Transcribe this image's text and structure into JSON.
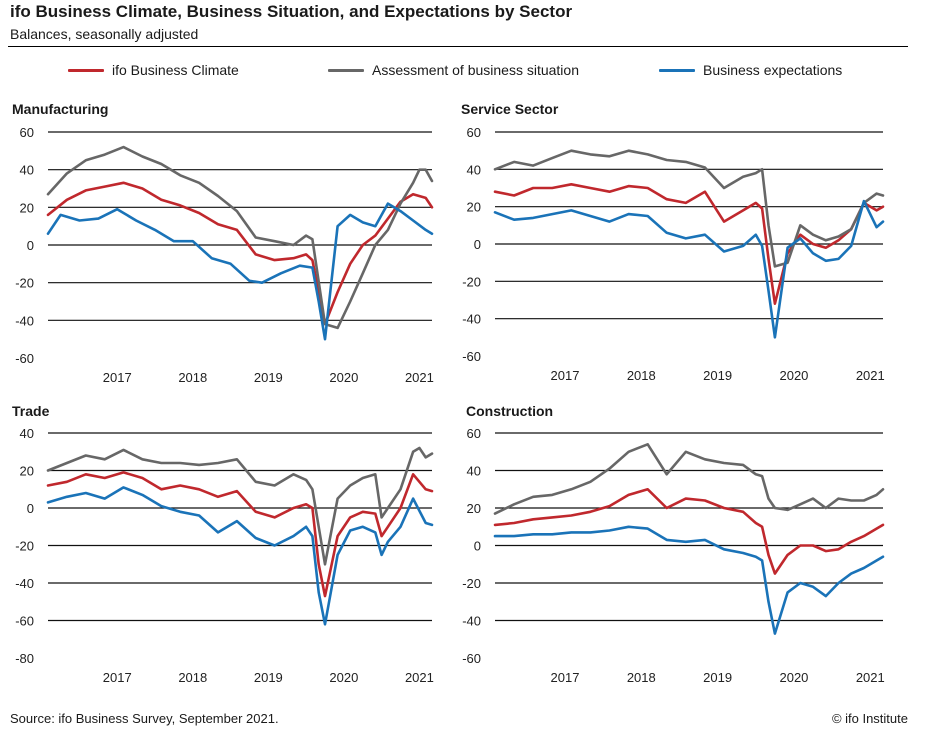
{
  "header": {
    "title": "ifo Business Climate, Business Situation, and Expectations by Sector",
    "subtitle": "Balances, seasonally adjusted"
  },
  "legend": [
    {
      "label": "ifo Business Climate",
      "color": "#c0282d"
    },
    {
      "label": "Assessment of business situation",
      "color": "#676767"
    },
    {
      "label": "Business expectations",
      "color": "#1a73b8"
    }
  ],
  "footer": {
    "source": "Source: ifo Business Survey, September 2021.",
    "copyright": "© ifo Institute"
  },
  "chart_data": [
    {
      "type": "line",
      "title": "Manufacturing",
      "ylim": [
        -60,
        60
      ],
      "yticks": [
        60,
        40,
        20,
        0,
        -20,
        -40,
        -60
      ],
      "x_labels": [
        "2017",
        "2018",
        "2019",
        "2020",
        "2021"
      ],
      "x_range": [
        "2016-08",
        "2021-09"
      ],
      "grid": true,
      "series": [
        {
          "name": "ifo Business Climate",
          "color": "#c0282d",
          "x": [
            "2016-08",
            "2016-11",
            "2017-02",
            "2017-05",
            "2017-08",
            "2017-11",
            "2018-02",
            "2018-05",
            "2018-08",
            "2018-11",
            "2019-02",
            "2019-05",
            "2019-08",
            "2019-11",
            "2020-01",
            "2020-02",
            "2020-04",
            "2020-06",
            "2020-08",
            "2020-10",
            "2020-12",
            "2021-02",
            "2021-04",
            "2021-06",
            "2021-08",
            "2021-09"
          ],
          "y": [
            16,
            24,
            29,
            31,
            33,
            30,
            24,
            21,
            17,
            11,
            8,
            -5,
            -8,
            -7,
            -5,
            -8,
            -42,
            -25,
            -10,
            0,
            5,
            14,
            23,
            27,
            25,
            20
          ]
        },
        {
          "name": "Assessment of business situation",
          "color": "#676767",
          "x": [
            "2016-08",
            "2016-11",
            "2017-02",
            "2017-05",
            "2017-08",
            "2017-11",
            "2018-02",
            "2018-05",
            "2018-08",
            "2018-11",
            "2019-02",
            "2019-05",
            "2019-08",
            "2019-11",
            "2020-01",
            "2020-02",
            "2020-04",
            "2020-06",
            "2020-08",
            "2020-10",
            "2020-12",
            "2021-02",
            "2021-04",
            "2021-06",
            "2021-07",
            "2021-08",
            "2021-09"
          ],
          "y": [
            27,
            38,
            45,
            48,
            52,
            47,
            43,
            37,
            33,
            26,
            18,
            4,
            2,
            0,
            5,
            3,
            -42,
            -44,
            -30,
            -15,
            0,
            8,
            22,
            33,
            40,
            40,
            34
          ]
        },
        {
          "name": "Business expectations",
          "color": "#1a73b8",
          "x": [
            "2016-08",
            "2016-10",
            "2017-01",
            "2017-04",
            "2017-07",
            "2017-10",
            "2018-01",
            "2018-04",
            "2018-07",
            "2018-10",
            "2019-01",
            "2019-04",
            "2019-06",
            "2019-09",
            "2019-12",
            "2020-02",
            "2020-03",
            "2020-04",
            "2020-06",
            "2020-08",
            "2020-10",
            "2020-12",
            "2021-02",
            "2021-04",
            "2021-06",
            "2021-08",
            "2021-09"
          ],
          "y": [
            6,
            16,
            13,
            14,
            19,
            13,
            8,
            2,
            2,
            -7,
            -10,
            -19,
            -20,
            -15,
            -11,
            -12,
            -30,
            -50,
            10,
            16,
            12,
            10,
            22,
            18,
            13,
            8,
            6
          ]
        }
      ]
    },
    {
      "type": "line",
      "title": "Service Sector",
      "ylim": [
        -60,
        60
      ],
      "yticks": [
        60,
        40,
        20,
        0,
        -20,
        -40,
        -60
      ],
      "x_labels": [
        "2017",
        "2018",
        "2019",
        "2020",
        "2021"
      ],
      "x_range": [
        "2016-08",
        "2021-09"
      ],
      "grid": true,
      "series": [
        {
          "name": "ifo Business Climate",
          "color": "#c0282d",
          "x": [
            "2016-08",
            "2016-11",
            "2017-02",
            "2017-05",
            "2017-08",
            "2017-11",
            "2018-02",
            "2018-05",
            "2018-08",
            "2018-11",
            "2019-02",
            "2019-05",
            "2019-08",
            "2019-11",
            "2020-01",
            "2020-02",
            "2020-03",
            "2020-04",
            "2020-06",
            "2020-08",
            "2020-10",
            "2020-12",
            "2021-02",
            "2021-04",
            "2021-06",
            "2021-08",
            "2021-09"
          ],
          "y": [
            28,
            26,
            30,
            30,
            32,
            30,
            28,
            31,
            30,
            24,
            22,
            28,
            12,
            18,
            22,
            19,
            -8,
            -32,
            -5,
            5,
            0,
            -2,
            2,
            8,
            22,
            18,
            20
          ]
        },
        {
          "name": "Assessment of business situation",
          "color": "#676767",
          "x": [
            "2016-08",
            "2016-11",
            "2017-02",
            "2017-05",
            "2017-08",
            "2017-11",
            "2018-02",
            "2018-05",
            "2018-08",
            "2018-11",
            "2019-02",
            "2019-05",
            "2019-08",
            "2019-11",
            "2020-01",
            "2020-02",
            "2020-03",
            "2020-04",
            "2020-06",
            "2020-08",
            "2020-10",
            "2020-12",
            "2021-02",
            "2021-04",
            "2021-06",
            "2021-08",
            "2021-09"
          ],
          "y": [
            40,
            44,
            42,
            46,
            50,
            48,
            47,
            50,
            48,
            45,
            44,
            41,
            30,
            36,
            38,
            40,
            10,
            -12,
            -10,
            10,
            5,
            2,
            4,
            8,
            22,
            27,
            26
          ]
        },
        {
          "name": "Business expectations",
          "color": "#1a73b8",
          "x": [
            "2016-08",
            "2016-11",
            "2017-02",
            "2017-05",
            "2017-08",
            "2017-11",
            "2018-02",
            "2018-05",
            "2018-08",
            "2018-11",
            "2019-02",
            "2019-05",
            "2019-08",
            "2019-11",
            "2020-01",
            "2020-02",
            "2020-03",
            "2020-04",
            "2020-06",
            "2020-08",
            "2020-10",
            "2020-12",
            "2021-02",
            "2021-04",
            "2021-06",
            "2021-08",
            "2021-09"
          ],
          "y": [
            17,
            13,
            14,
            16,
            18,
            15,
            12,
            16,
            15,
            6,
            3,
            5,
            -4,
            -1,
            5,
            -1,
            -25,
            -50,
            -2,
            3,
            -5,
            -9,
            -8,
            -1,
            23,
            9,
            12
          ]
        }
      ]
    },
    {
      "type": "line",
      "title": "Trade",
      "ylim": [
        -80,
        40
      ],
      "yticks": [
        40,
        20,
        0,
        -20,
        -40,
        -60,
        -80
      ],
      "x_labels": [
        "2017",
        "2018",
        "2019",
        "2020",
        "2021"
      ],
      "x_range": [
        "2016-08",
        "2021-09"
      ],
      "grid": true,
      "series": [
        {
          "name": "ifo Business Climate",
          "color": "#c0282d",
          "x": [
            "2016-08",
            "2016-11",
            "2017-02",
            "2017-05",
            "2017-08",
            "2017-11",
            "2018-02",
            "2018-05",
            "2018-08",
            "2018-11",
            "2019-02",
            "2019-05",
            "2019-08",
            "2019-11",
            "2020-01",
            "2020-02",
            "2020-03",
            "2020-04",
            "2020-06",
            "2020-08",
            "2020-10",
            "2020-12",
            "2021-01",
            "2021-02",
            "2021-04",
            "2021-06",
            "2021-08",
            "2021-09"
          ],
          "y": [
            12,
            14,
            18,
            16,
            19,
            16,
            10,
            12,
            10,
            6,
            9,
            -2,
            -5,
            0,
            2,
            0,
            -30,
            -47,
            -15,
            -5,
            -2,
            -3,
            -15,
            -10,
            0,
            18,
            10,
            9
          ]
        },
        {
          "name": "Assessment of business situation",
          "color": "#676767",
          "x": [
            "2016-08",
            "2016-11",
            "2017-02",
            "2017-05",
            "2017-08",
            "2017-11",
            "2018-02",
            "2018-05",
            "2018-08",
            "2018-11",
            "2019-02",
            "2019-05",
            "2019-08",
            "2019-11",
            "2020-01",
            "2020-02",
            "2020-03",
            "2020-04",
            "2020-06",
            "2020-08",
            "2020-10",
            "2020-12",
            "2021-01",
            "2021-02",
            "2021-04",
            "2021-06",
            "2021-07",
            "2021-08",
            "2021-09"
          ],
          "y": [
            20,
            24,
            28,
            26,
            31,
            26,
            24,
            24,
            23,
            24,
            26,
            14,
            12,
            18,
            15,
            10,
            -10,
            -30,
            5,
            12,
            16,
            18,
            -5,
            0,
            10,
            30,
            32,
            27,
            29
          ]
        },
        {
          "name": "Business expectations",
          "color": "#1a73b8",
          "x": [
            "2016-08",
            "2016-11",
            "2017-02",
            "2017-05",
            "2017-08",
            "2017-11",
            "2018-02",
            "2018-05",
            "2018-08",
            "2018-11",
            "2019-02",
            "2019-05",
            "2019-08",
            "2019-11",
            "2020-01",
            "2020-02",
            "2020-03",
            "2020-04",
            "2020-06",
            "2020-08",
            "2020-10",
            "2020-12",
            "2021-01",
            "2021-02",
            "2021-04",
            "2021-06",
            "2021-08",
            "2021-09"
          ],
          "y": [
            3,
            6,
            8,
            5,
            11,
            7,
            1,
            -2,
            -4,
            -13,
            -7,
            -16,
            -20,
            -15,
            -10,
            -15,
            -45,
            -62,
            -25,
            -12,
            -10,
            -13,
            -25,
            -18,
            -10,
            5,
            -8,
            -9
          ]
        }
      ]
    },
    {
      "type": "line",
      "title": "Construction",
      "ylim": [
        -60,
        60
      ],
      "yticks": [
        60,
        40,
        20,
        0,
        -20,
        -40,
        -60
      ],
      "x_labels": [
        "2017",
        "2018",
        "2019",
        "2020",
        "2021"
      ],
      "x_range": [
        "2016-08",
        "2021-09"
      ],
      "grid": true,
      "series": [
        {
          "name": "ifo Business Climate",
          "color": "#c0282d",
          "x": [
            "2016-08",
            "2016-11",
            "2017-02",
            "2017-05",
            "2017-08",
            "2017-11",
            "2018-02",
            "2018-05",
            "2018-08",
            "2018-11",
            "2019-02",
            "2019-05",
            "2019-08",
            "2019-11",
            "2020-01",
            "2020-02",
            "2020-03",
            "2020-04",
            "2020-06",
            "2020-08",
            "2020-10",
            "2020-12",
            "2021-02",
            "2021-04",
            "2021-06",
            "2021-08",
            "2021-09"
          ],
          "y": [
            11,
            12,
            14,
            15,
            16,
            18,
            21,
            27,
            30,
            20,
            25,
            24,
            20,
            18,
            12,
            10,
            -5,
            -15,
            -5,
            0,
            0,
            -3,
            -2,
            2,
            5,
            9,
            11
          ]
        },
        {
          "name": "Assessment of business situation",
          "color": "#676767",
          "x": [
            "2016-08",
            "2016-11",
            "2017-02",
            "2017-05",
            "2017-08",
            "2017-11",
            "2018-02",
            "2018-05",
            "2018-08",
            "2018-11",
            "2019-02",
            "2019-05",
            "2019-08",
            "2019-11",
            "2020-01",
            "2020-02",
            "2020-03",
            "2020-04",
            "2020-06",
            "2020-08",
            "2020-10",
            "2020-12",
            "2021-02",
            "2021-04",
            "2021-06",
            "2021-08",
            "2021-09"
          ],
          "y": [
            17,
            22,
            26,
            27,
            30,
            34,
            41,
            50,
            54,
            38,
            50,
            46,
            44,
            43,
            38,
            37,
            25,
            20,
            19,
            22,
            25,
            20,
            25,
            24,
            24,
            27,
            30
          ]
        },
        {
          "name": "Business expectations",
          "color": "#1a73b8",
          "x": [
            "2016-08",
            "2016-11",
            "2017-02",
            "2017-05",
            "2017-08",
            "2017-11",
            "2018-02",
            "2018-05",
            "2018-08",
            "2018-11",
            "2019-02",
            "2019-05",
            "2019-08",
            "2019-11",
            "2020-01",
            "2020-02",
            "2020-03",
            "2020-04",
            "2020-06",
            "2020-08",
            "2020-10",
            "2020-12",
            "2021-02",
            "2021-04",
            "2021-06",
            "2021-08",
            "2021-09"
          ],
          "y": [
            5,
            5,
            6,
            6,
            7,
            7,
            8,
            10,
            9,
            3,
            2,
            3,
            -2,
            -4,
            -6,
            -8,
            -30,
            -47,
            -25,
            -20,
            -22,
            -27,
            -20,
            -15,
            -12,
            -8,
            -6
          ]
        }
      ]
    }
  ]
}
